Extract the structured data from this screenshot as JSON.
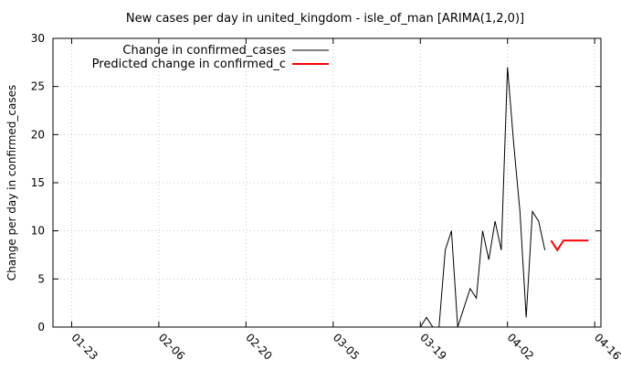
{
  "chart_data": {
    "type": "line",
    "title": "New cases per day in united_kingdom - isle_of_man [ARIMA(1,2,0)]",
    "xlabel": "",
    "ylabel": "Change per day in confirmed_cases",
    "x_range": [
      "2020-01-20",
      "2020-04-17"
    ],
    "ylim": [
      0,
      30
    ],
    "y_ticks": [
      0,
      5,
      10,
      15,
      20,
      25,
      30
    ],
    "x_ticks": [
      {
        "date": "2020-01-23",
        "label": "01-23"
      },
      {
        "date": "2020-02-06",
        "label": "02-06"
      },
      {
        "date": "2020-02-20",
        "label": "02-20"
      },
      {
        "date": "2020-03-05",
        "label": "03-05"
      },
      {
        "date": "2020-03-19",
        "label": "03-19"
      },
      {
        "date": "2020-04-02",
        "label": "04-02"
      },
      {
        "date": "2020-04-16",
        "label": "04-16"
      }
    ],
    "grid": true,
    "legend_position": "top-left",
    "series": [
      {
        "name": "Change in confirmed_cases",
        "color": "#000000",
        "points": [
          {
            "x": "2020-01-22",
            "y": 0
          },
          {
            "x": "2020-01-23",
            "y": 0
          },
          {
            "x": "2020-01-24",
            "y": 0
          },
          {
            "x": "2020-01-25",
            "y": 0
          },
          {
            "x": "2020-01-26",
            "y": 0
          },
          {
            "x": "2020-01-27",
            "y": 0
          },
          {
            "x": "2020-01-28",
            "y": 0
          },
          {
            "x": "2020-01-29",
            "y": 0
          },
          {
            "x": "2020-01-30",
            "y": 0
          },
          {
            "x": "2020-01-31",
            "y": 0
          },
          {
            "x": "2020-02-01",
            "y": 0
          },
          {
            "x": "2020-02-02",
            "y": 0
          },
          {
            "x": "2020-02-03",
            "y": 0
          },
          {
            "x": "2020-02-04",
            "y": 0
          },
          {
            "x": "2020-02-05",
            "y": 0
          },
          {
            "x": "2020-02-06",
            "y": 0
          },
          {
            "x": "2020-02-07",
            "y": 0
          },
          {
            "x": "2020-02-08",
            "y": 0
          },
          {
            "x": "2020-02-09",
            "y": 0
          },
          {
            "x": "2020-02-10",
            "y": 0
          },
          {
            "x": "2020-02-11",
            "y": 0
          },
          {
            "x": "2020-02-12",
            "y": 0
          },
          {
            "x": "2020-02-13",
            "y": 0
          },
          {
            "x": "2020-02-14",
            "y": 0
          },
          {
            "x": "2020-02-15",
            "y": 0
          },
          {
            "x": "2020-02-16",
            "y": 0
          },
          {
            "x": "2020-02-17",
            "y": 0
          },
          {
            "x": "2020-02-18",
            "y": 0
          },
          {
            "x": "2020-02-19",
            "y": 0
          },
          {
            "x": "2020-02-20",
            "y": 0
          },
          {
            "x": "2020-02-21",
            "y": 0
          },
          {
            "x": "2020-02-22",
            "y": 0
          },
          {
            "x": "2020-02-23",
            "y": 0
          },
          {
            "x": "2020-02-24",
            "y": 0
          },
          {
            "x": "2020-02-25",
            "y": 0
          },
          {
            "x": "2020-02-26",
            "y": 0
          },
          {
            "x": "2020-02-27",
            "y": 0
          },
          {
            "x": "2020-02-28",
            "y": 0
          },
          {
            "x": "2020-02-29",
            "y": 0
          },
          {
            "x": "2020-03-01",
            "y": 0
          },
          {
            "x": "2020-03-02",
            "y": 0
          },
          {
            "x": "2020-03-03",
            "y": 0
          },
          {
            "x": "2020-03-04",
            "y": 0
          },
          {
            "x": "2020-03-05",
            "y": 0
          },
          {
            "x": "2020-03-06",
            "y": 0
          },
          {
            "x": "2020-03-07",
            "y": 0
          },
          {
            "x": "2020-03-08",
            "y": 0
          },
          {
            "x": "2020-03-09",
            "y": 0
          },
          {
            "x": "2020-03-10",
            "y": 0
          },
          {
            "x": "2020-03-11",
            "y": 0
          },
          {
            "x": "2020-03-12",
            "y": 0
          },
          {
            "x": "2020-03-13",
            "y": 0
          },
          {
            "x": "2020-03-14",
            "y": 0
          },
          {
            "x": "2020-03-15",
            "y": 0
          },
          {
            "x": "2020-03-16",
            "y": 0
          },
          {
            "x": "2020-03-17",
            "y": 0
          },
          {
            "x": "2020-03-18",
            "y": 0
          },
          {
            "x": "2020-03-19",
            "y": 0
          },
          {
            "x": "2020-03-20",
            "y": 1
          },
          {
            "x": "2020-03-21",
            "y": 0
          },
          {
            "x": "2020-03-22",
            "y": 0
          },
          {
            "x": "2020-03-23",
            "y": 8
          },
          {
            "x": "2020-03-24",
            "y": 10
          },
          {
            "x": "2020-03-25",
            "y": 0
          },
          {
            "x": "2020-03-26",
            "y": 2
          },
          {
            "x": "2020-03-27",
            "y": 4
          },
          {
            "x": "2020-03-28",
            "y": 3
          },
          {
            "x": "2020-03-29",
            "y": 10
          },
          {
            "x": "2020-03-30",
            "y": 7
          },
          {
            "x": "2020-03-31",
            "y": 11
          },
          {
            "x": "2020-04-01",
            "y": 8
          },
          {
            "x": "2020-04-02",
            "y": 27
          },
          {
            "x": "2020-04-03",
            "y": 19
          },
          {
            "x": "2020-04-04",
            "y": 12
          },
          {
            "x": "2020-04-05",
            "y": 1
          },
          {
            "x": "2020-04-06",
            "y": 12
          },
          {
            "x": "2020-04-07",
            "y": 11
          },
          {
            "x": "2020-04-08",
            "y": 8
          }
        ]
      },
      {
        "name": "Predicted change in confirmed_c",
        "color": "#ff0000",
        "points": [
          {
            "x": "2020-04-09",
            "y": 9
          },
          {
            "x": "2020-04-10",
            "y": 8
          },
          {
            "x": "2020-04-11",
            "y": 9
          },
          {
            "x": "2020-04-12",
            "y": 9
          },
          {
            "x": "2020-04-13",
            "y": 9
          },
          {
            "x": "2020-04-14",
            "y": 9
          },
          {
            "x": "2020-04-15",
            "y": 9
          }
        ]
      }
    ]
  }
}
